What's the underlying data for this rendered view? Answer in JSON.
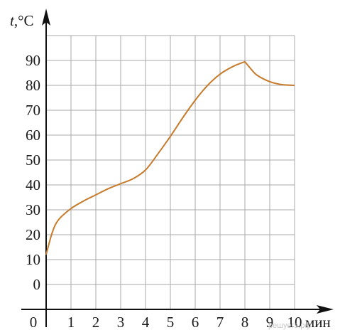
{
  "chart_data": {
    "type": "line",
    "ylabel_var": "t",
    "ylabel_unit": ",°C",
    "xlabel": "мин",
    "origin_label": "0",
    "x_ticks": [
      "1",
      "2",
      "3",
      "4",
      "5",
      "6",
      "7",
      "8",
      "9",
      "10"
    ],
    "y_ticks": [
      "0",
      "10",
      "20",
      "30",
      "40",
      "50",
      "60",
      "70",
      "80",
      "90"
    ],
    "xlim": [
      0,
      10
    ],
    "ylim": [
      0,
      90
    ],
    "grid": true,
    "series": [
      {
        "color": "#c77b2b",
        "x": [
          0,
          0.25,
          0.5,
          1,
          1.5,
          2,
          2.5,
          3,
          3.5,
          4,
          4.5,
          5,
          5.5,
          6,
          6.5,
          7,
          7.5,
          8,
          8.25,
          8.5,
          9,
          9.5,
          10
        ],
        "y": [
          12,
          21,
          26,
          30.5,
          33.5,
          36,
          38.5,
          40.5,
          42.5,
          46,
          52.5,
          59.5,
          67,
          74,
          80,
          84.5,
          87.5,
          89.5,
          86.5,
          84,
          81.5,
          80.3,
          80
        ]
      }
    ]
  },
  "watermark": "решуегэ.рф"
}
